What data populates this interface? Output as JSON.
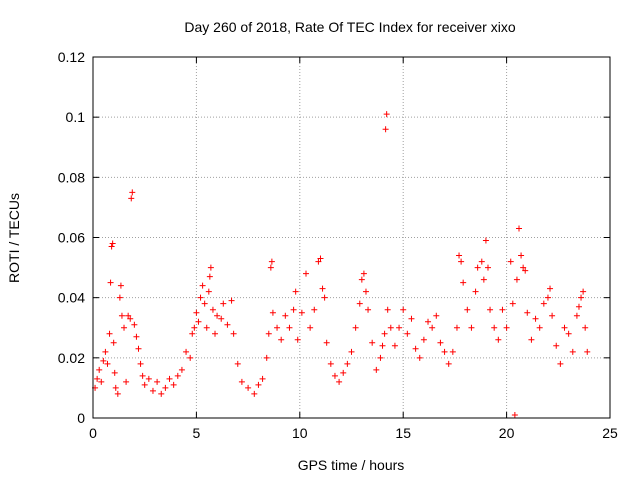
{
  "chart_data": {
    "type": "scatter",
    "title": "Day 260 of 2018, Rate Of TEC Index for receiver xixo",
    "xlabel": "GPS time / hours",
    "ylabel": "ROTI / TECUs",
    "xlim": [
      0,
      25
    ],
    "ylim": [
      0,
      0.12
    ],
    "x_ticks": [
      0,
      5,
      10,
      15,
      20,
      25
    ],
    "x_tick_labels": [
      "0",
      "5",
      "10",
      "15",
      "20",
      "25"
    ],
    "y_ticks": [
      0,
      0.02,
      0.04,
      0.06,
      0.08,
      0.1,
      0.12
    ],
    "y_tick_labels": [
      "0",
      "0.02",
      "0.04",
      "0.06",
      "0.08",
      "0.1",
      "0.12"
    ],
    "grid": true,
    "marker": "+",
    "color": "#ff0000",
    "series": [
      {
        "name": "ROTI",
        "points": [
          [
            0.1,
            0.01
          ],
          [
            0.2,
            0.013
          ],
          [
            0.3,
            0.016
          ],
          [
            0.4,
            0.012
          ],
          [
            0.5,
            0.019
          ],
          [
            0.6,
            0.022
          ],
          [
            0.7,
            0.018
          ],
          [
            0.8,
            0.028
          ],
          [
            0.85,
            0.045
          ],
          [
            0.9,
            0.057
          ],
          [
            0.95,
            0.058
          ],
          [
            1.0,
            0.025
          ],
          [
            1.05,
            0.015
          ],
          [
            1.1,
            0.01
          ],
          [
            1.2,
            0.008
          ],
          [
            1.3,
            0.04
          ],
          [
            1.35,
            0.044
          ],
          [
            1.4,
            0.034
          ],
          [
            1.5,
            0.03
          ],
          [
            1.6,
            0.012
          ],
          [
            1.7,
            0.034
          ],
          [
            1.8,
            0.033
          ],
          [
            1.85,
            0.073
          ],
          [
            1.9,
            0.075
          ],
          [
            2.0,
            0.031
          ],
          [
            2.1,
            0.027
          ],
          [
            2.2,
            0.023
          ],
          [
            2.3,
            0.018
          ],
          [
            2.4,
            0.014
          ],
          [
            2.5,
            0.011
          ],
          [
            2.7,
            0.013
          ],
          [
            2.9,
            0.009
          ],
          [
            3.1,
            0.012
          ],
          [
            3.3,
            0.008
          ],
          [
            3.5,
            0.01
          ],
          [
            3.7,
            0.013
          ],
          [
            3.9,
            0.011
          ],
          [
            4.1,
            0.014
          ],
          [
            4.3,
            0.016
          ],
          [
            4.5,
            0.022
          ],
          [
            4.7,
            0.02
          ],
          [
            4.8,
            0.028
          ],
          [
            4.9,
            0.03
          ],
          [
            5.0,
            0.035
          ],
          [
            5.1,
            0.032
          ],
          [
            5.2,
            0.04
          ],
          [
            5.3,
            0.044
          ],
          [
            5.4,
            0.038
          ],
          [
            5.5,
            0.03
          ],
          [
            5.6,
            0.042
          ],
          [
            5.65,
            0.047
          ],
          [
            5.7,
            0.05
          ],
          [
            5.8,
            0.036
          ],
          [
            5.9,
            0.028
          ],
          [
            6.0,
            0.034
          ],
          [
            6.2,
            0.033
          ],
          [
            6.3,
            0.038
          ],
          [
            6.5,
            0.031
          ],
          [
            6.7,
            0.039
          ],
          [
            6.8,
            0.028
          ],
          [
            7.0,
            0.018
          ],
          [
            7.2,
            0.012
          ],
          [
            7.5,
            0.01
          ],
          [
            7.8,
            0.008
          ],
          [
            8.0,
            0.011
          ],
          [
            8.2,
            0.013
          ],
          [
            8.4,
            0.02
          ],
          [
            8.5,
            0.028
          ],
          [
            8.6,
            0.05
          ],
          [
            8.65,
            0.052
          ],
          [
            8.7,
            0.035
          ],
          [
            8.9,
            0.03
          ],
          [
            9.1,
            0.026
          ],
          [
            9.3,
            0.034
          ],
          [
            9.5,
            0.03
          ],
          [
            9.7,
            0.036
          ],
          [
            9.8,
            0.042
          ],
          [
            9.9,
            0.026
          ],
          [
            10.1,
            0.035
          ],
          [
            10.3,
            0.048
          ],
          [
            10.5,
            0.03
          ],
          [
            10.7,
            0.036
          ],
          [
            10.9,
            0.052
          ],
          [
            11.0,
            0.053
          ],
          [
            11.1,
            0.043
          ],
          [
            11.2,
            0.04
          ],
          [
            11.3,
            0.025
          ],
          [
            11.5,
            0.018
          ],
          [
            11.7,
            0.014
          ],
          [
            11.9,
            0.012
          ],
          [
            12.1,
            0.015
          ],
          [
            12.3,
            0.018
          ],
          [
            12.5,
            0.022
          ],
          [
            12.7,
            0.03
          ],
          [
            12.9,
            0.038
          ],
          [
            13.0,
            0.046
          ],
          [
            13.1,
            0.048
          ],
          [
            13.2,
            0.042
          ],
          [
            13.3,
            0.036
          ],
          [
            13.5,
            0.025
          ],
          [
            13.7,
            0.016
          ],
          [
            13.9,
            0.02
          ],
          [
            14.0,
            0.024
          ],
          [
            14.1,
            0.028
          ],
          [
            14.15,
            0.096
          ],
          [
            14.2,
            0.101
          ],
          [
            14.25,
            0.036
          ],
          [
            14.4,
            0.03
          ],
          [
            14.6,
            0.024
          ],
          [
            14.8,
            0.03
          ],
          [
            15.0,
            0.036
          ],
          [
            15.2,
            0.028
          ],
          [
            15.4,
            0.033
          ],
          [
            15.6,
            0.023
          ],
          [
            15.8,
            0.02
          ],
          [
            16.0,
            0.026
          ],
          [
            16.2,
            0.032
          ],
          [
            16.4,
            0.03
          ],
          [
            16.6,
            0.034
          ],
          [
            16.8,
            0.025
          ],
          [
            17.0,
            0.022
          ],
          [
            17.2,
            0.018
          ],
          [
            17.4,
            0.022
          ],
          [
            17.6,
            0.03
          ],
          [
            17.7,
            0.054
          ],
          [
            17.8,
            0.052
          ],
          [
            17.9,
            0.045
          ],
          [
            18.1,
            0.036
          ],
          [
            18.3,
            0.03
          ],
          [
            18.5,
            0.042
          ],
          [
            18.6,
            0.05
          ],
          [
            18.8,
            0.052
          ],
          [
            18.9,
            0.046
          ],
          [
            19.0,
            0.059
          ],
          [
            19.1,
            0.05
          ],
          [
            19.2,
            0.036
          ],
          [
            19.4,
            0.03
          ],
          [
            19.6,
            0.026
          ],
          [
            19.8,
            0.036
          ],
          [
            20.0,
            0.03
          ],
          [
            20.2,
            0.052
          ],
          [
            20.3,
            0.038
          ],
          [
            20.4,
            0.001
          ],
          [
            20.5,
            0.046
          ],
          [
            20.6,
            0.063
          ],
          [
            20.7,
            0.054
          ],
          [
            20.8,
            0.05
          ],
          [
            20.9,
            0.049
          ],
          [
            21.0,
            0.035
          ],
          [
            21.2,
            0.026
          ],
          [
            21.4,
            0.033
          ],
          [
            21.6,
            0.03
          ],
          [
            21.8,
            0.038
          ],
          [
            22.0,
            0.04
          ],
          [
            22.1,
            0.043
          ],
          [
            22.2,
            0.034
          ],
          [
            22.4,
            0.024
          ],
          [
            22.6,
            0.018
          ],
          [
            22.8,
            0.03
          ],
          [
            23.0,
            0.028
          ],
          [
            23.2,
            0.022
          ],
          [
            23.4,
            0.034
          ],
          [
            23.5,
            0.037
          ],
          [
            23.6,
            0.04
          ],
          [
            23.7,
            0.042
          ],
          [
            23.8,
            0.03
          ],
          [
            23.9,
            0.022
          ]
        ]
      }
    ]
  }
}
